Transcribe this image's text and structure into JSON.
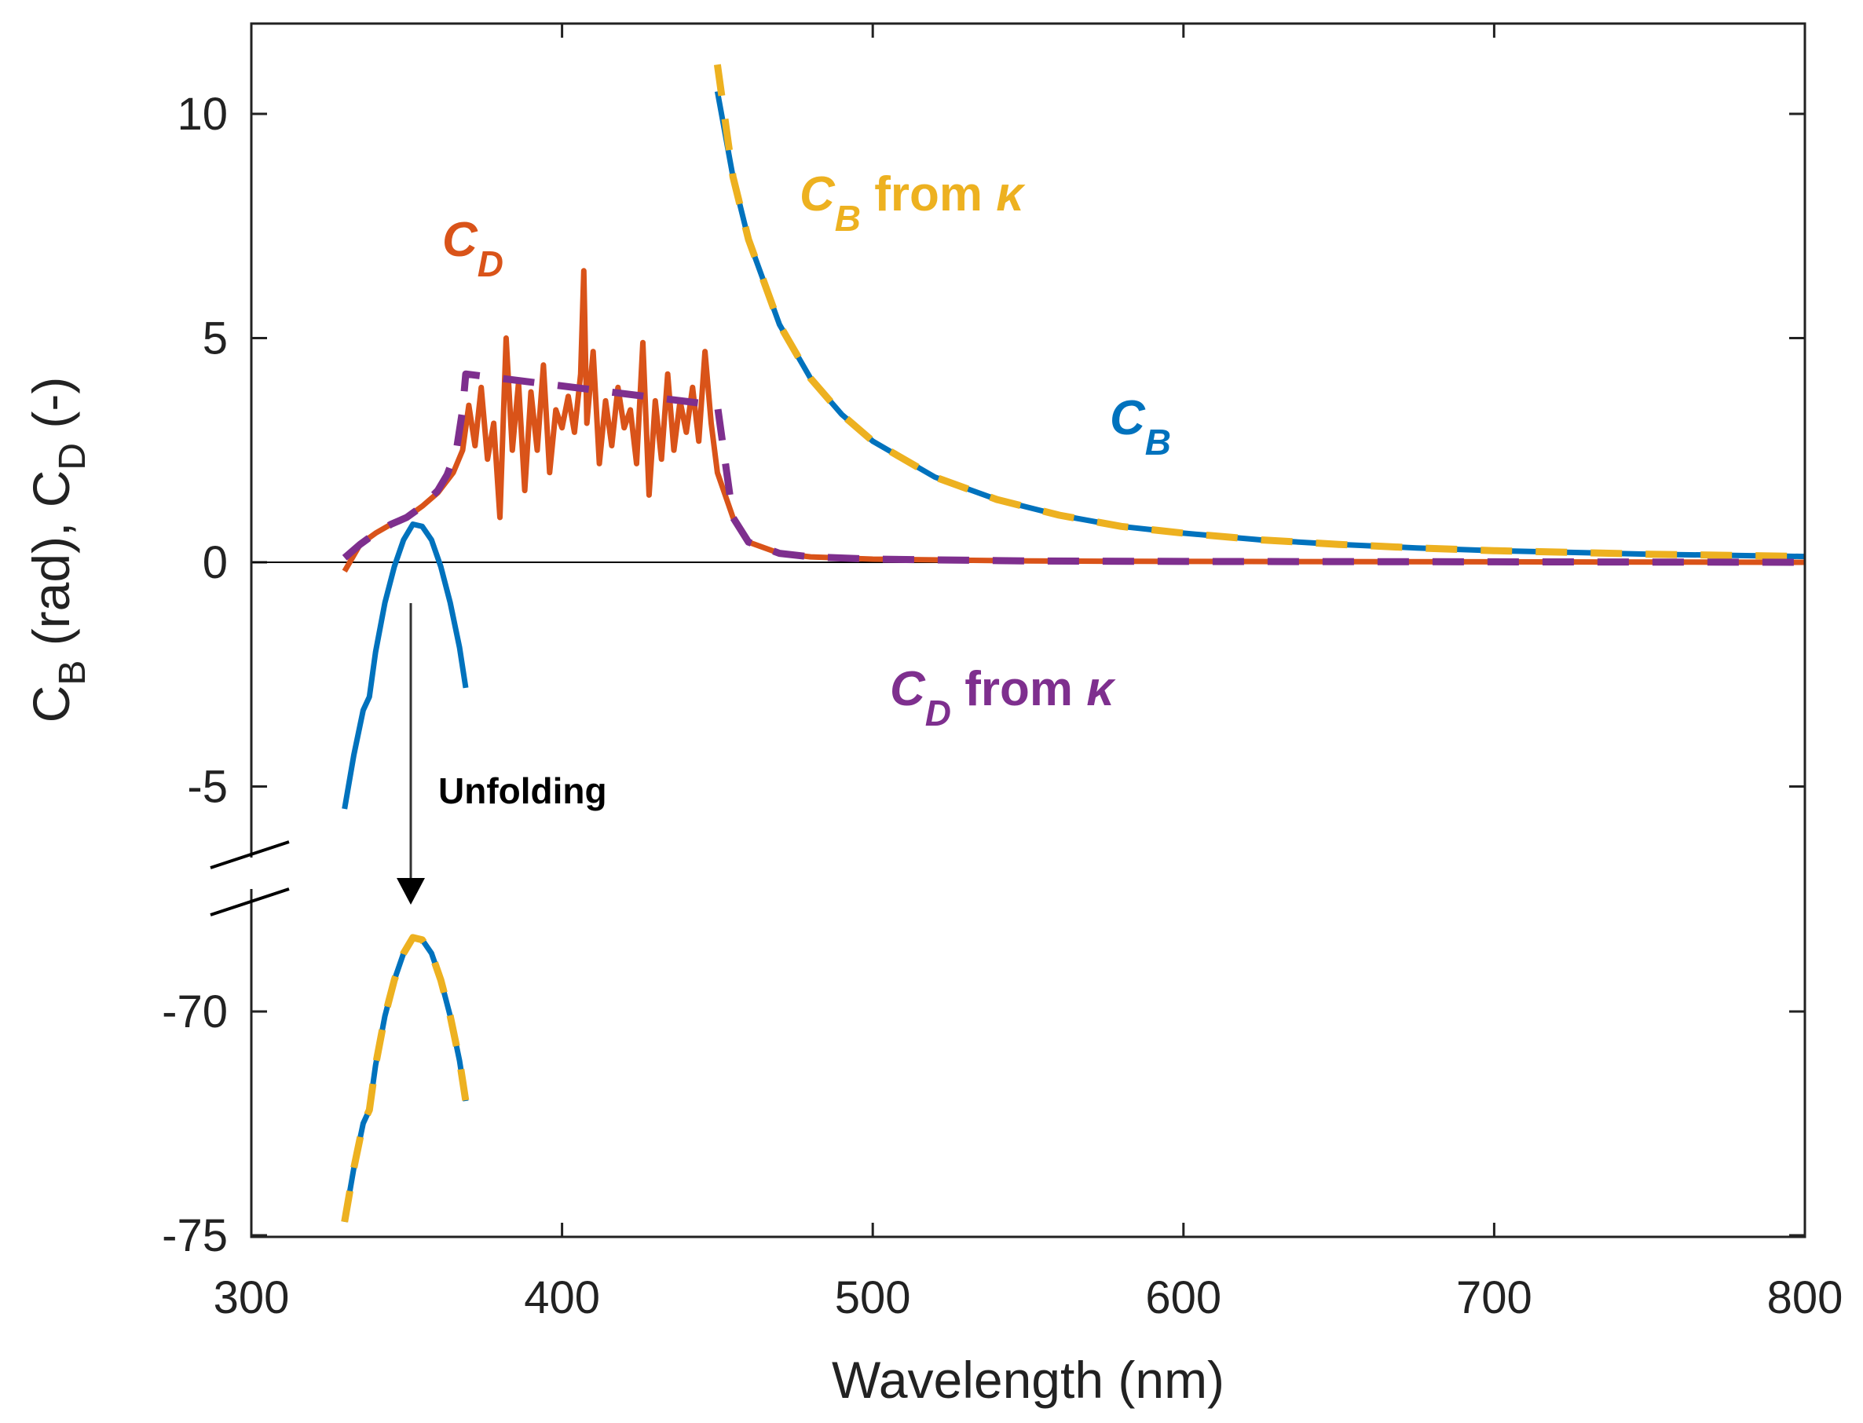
{
  "chart_data": {
    "type": "line",
    "xlabel": "Wavelength (nm)",
    "ylabel": {
      "c1": "C",
      "s1": "B",
      "m": " (rad),  ",
      "c2": "C",
      "s2": "D",
      "e": " (-)"
    },
    "xlim": [
      300,
      800
    ],
    "ylim_upper": [
      -7,
      12
    ],
    "ylim_lower": [
      -75,
      -66.8
    ],
    "axis_break": true,
    "x_ticks": [
      "300",
      "400",
      "500",
      "600",
      "700",
      "800"
    ],
    "y_ticks": [
      "10",
      "5",
      "0",
      "-5",
      "-70",
      "-75"
    ],
    "zero_line": true,
    "colors": {
      "CB": "#0072BD",
      "CD": "#D95319",
      "CB_kappa": "#EDB120",
      "CD_kappa": "#7E2F8E",
      "axis": "#222222"
    },
    "annotations": {
      "cd": {
        "main": "C",
        "sub": "D"
      },
      "cb": {
        "main": "C",
        "sub": "B"
      },
      "cb_kappa": {
        "main": "C",
        "sub": "B",
        "rest": " from ",
        "sym": "κ"
      },
      "cd_kappa": {
        "main": "C",
        "sub": "D",
        "rest": " from ",
        "sym": "κ"
      },
      "unfolding": "Unfolding"
    },
    "series": [
      {
        "name": "C_B (folded, blue)",
        "color": "#0072BD",
        "x": [
          330,
          333,
          336,
          338,
          340,
          343,
          346,
          349,
          352,
          355,
          358,
          361,
          364,
          367,
          369
        ],
        "y": [
          -5.5,
          -4.3,
          -3.3,
          -3.0,
          -2.0,
          -0.9,
          -0.1,
          0.5,
          0.85,
          0.8,
          0.5,
          -0.1,
          -0.9,
          -1.9,
          -2.8
        ]
      },
      {
        "name": "C_B (unfolded, lower panel)",
        "color": "#0072BD",
        "x": [
          330,
          333,
          336,
          338,
          340,
          343,
          346,
          349,
          352,
          355,
          358,
          361,
          364,
          367,
          369
        ],
        "y": [
          -74.7,
          -73.5,
          -72.5,
          -72.2,
          -71.2,
          -70.1,
          -69.3,
          -68.7,
          -68.35,
          -68.4,
          -68.7,
          -69.3,
          -70.1,
          -71.1,
          -72.0
        ]
      },
      {
        "name": "C_B from kappa (unfolded, lower panel)",
        "color": "#EDB120",
        "dashed": true,
        "x": [
          330,
          333,
          336,
          338,
          340,
          343,
          346,
          349,
          352,
          355,
          358,
          361,
          364,
          367,
          369
        ],
        "y": [
          -74.7,
          -73.5,
          -72.5,
          -72.2,
          -71.2,
          -70.1,
          -69.3,
          -68.7,
          -68.35,
          -68.4,
          -68.7,
          -69.3,
          -70.1,
          -71.1,
          -72.0
        ]
      },
      {
        "name": "C_B (long wavelength)",
        "color": "#0072BD",
        "x": [
          450,
          455,
          460,
          470,
          480,
          490,
          500,
          520,
          540,
          560,
          580,
          600,
          625,
          650,
          675,
          700,
          750,
          800
        ],
        "y": [
          10.5,
          8.6,
          7.2,
          5.3,
          4.1,
          3.3,
          2.7,
          1.9,
          1.4,
          1.05,
          0.8,
          0.65,
          0.5,
          0.4,
          0.32,
          0.26,
          0.18,
          0.13
        ]
      },
      {
        "name": "C_B from kappa",
        "color": "#EDB120",
        "dashed": true,
        "x": [
          450,
          455,
          460,
          470,
          480,
          490,
          500,
          520,
          540,
          560,
          580,
          600,
          625,
          650,
          675,
          700,
          750,
          800
        ],
        "y": [
          11.1,
          8.6,
          7.2,
          5.3,
          4.1,
          3.3,
          2.7,
          1.9,
          1.4,
          1.05,
          0.8,
          0.65,
          0.5,
          0.4,
          0.32,
          0.26,
          0.18,
          0.13
        ]
      },
      {
        "name": "C_D",
        "color": "#D95319",
        "x": [
          330,
          335,
          340,
          345,
          350,
          355,
          360,
          365,
          368,
          370,
          372,
          374,
          376,
          378,
          380,
          382,
          384,
          386,
          388,
          390,
          392,
          394,
          396,
          398,
          400,
          402,
          404,
          406,
          407,
          408,
          410,
          412,
          414,
          416,
          418,
          420,
          422,
          424,
          426,
          428,
          430,
          432,
          434,
          436,
          438,
          440,
          442,
          444,
          446,
          448,
          450,
          455,
          460,
          470,
          480,
          500,
          550,
          600,
          700,
          800
        ],
        "y": [
          -0.2,
          0.4,
          0.65,
          0.85,
          1.0,
          1.25,
          1.55,
          2.0,
          2.5,
          3.5,
          2.6,
          3.9,
          2.3,
          3.1,
          1.0,
          5.0,
          2.5,
          4.0,
          1.6,
          3.8,
          2.5,
          4.4,
          2.0,
          3.4,
          3.0,
          3.7,
          2.9,
          4.2,
          6.5,
          3.1,
          4.7,
          2.2,
          3.6,
          2.6,
          3.9,
          3.0,
          3.4,
          2.2,
          4.9,
          1.5,
          3.6,
          2.3,
          4.2,
          2.5,
          3.6,
          2.9,
          3.9,
          2.7,
          4.7,
          3.1,
          2.0,
          1.0,
          0.45,
          0.2,
          0.12,
          0.07,
          0.03,
          0.02,
          0.01,
          0.0
        ]
      },
      {
        "name": "C_D from kappa",
        "color": "#7E2F8E",
        "dashed": true,
        "x": [
          330,
          335,
          340,
          345,
          350,
          355,
          360,
          363,
          366,
          368,
          369,
          450,
          455,
          460,
          470,
          480,
          500,
          550,
          600,
          700,
          800
        ],
        "y": [
          0.1,
          0.4,
          0.65,
          0.85,
          1.0,
          1.25,
          1.6,
          1.95,
          2.5,
          3.4,
          4.2,
          3.5,
          1.0,
          0.45,
          0.2,
          0.12,
          0.07,
          0.03,
          0.02,
          0.01,
          0.0
        ]
      }
    ]
  }
}
